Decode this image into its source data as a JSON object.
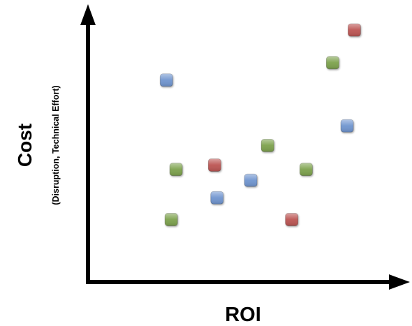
{
  "chart_data": {
    "type": "scatter",
    "xlabel": "ROI",
    "ylabel": "Cost",
    "ylabel_sub": "(Disruption, Technical Effort)",
    "xlim": [
      0,
      100
    ],
    "ylim": [
      0,
      100
    ],
    "grid": false,
    "legend": "none",
    "colors": {
      "blue": "#6f95cf",
      "green": "#7da24d",
      "red": "#bc5452"
    },
    "points": [
      {
        "x": 14,
        "y": 77,
        "color": "blue"
      },
      {
        "x": 18,
        "y": 36,
        "color": "green"
      },
      {
        "x": 16,
        "y": 13,
        "color": "green"
      },
      {
        "x": 34,
        "y": 38,
        "color": "red"
      },
      {
        "x": 35,
        "y": 23,
        "color": "blue"
      },
      {
        "x": 49,
        "y": 31,
        "color": "blue"
      },
      {
        "x": 56,
        "y": 47,
        "color": "green"
      },
      {
        "x": 66,
        "y": 13,
        "color": "red"
      },
      {
        "x": 72,
        "y": 36,
        "color": "green"
      },
      {
        "x": 83,
        "y": 85,
        "color": "green"
      },
      {
        "x": 89,
        "y": 56,
        "color": "blue"
      },
      {
        "x": 92,
        "y": 100,
        "color": "red"
      }
    ]
  }
}
